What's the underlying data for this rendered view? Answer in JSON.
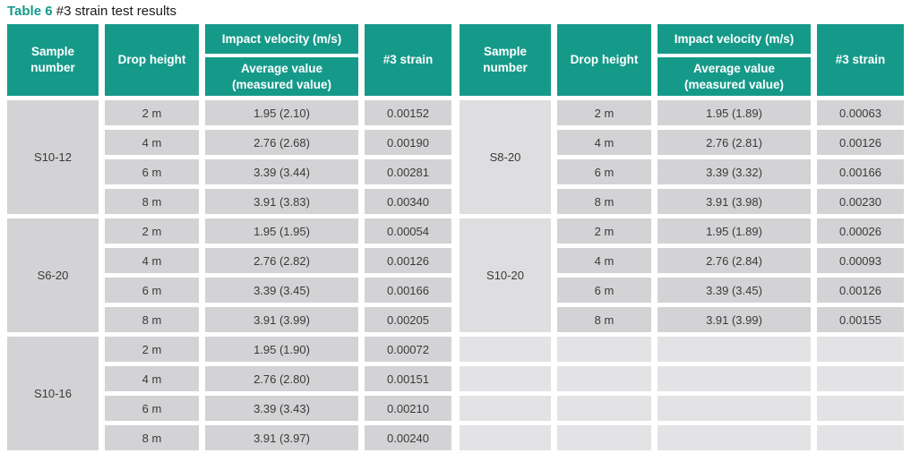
{
  "caption": {
    "label": "Table 6",
    "text": "#3 strain test results"
  },
  "colors": {
    "teal": "#159a8a",
    "cell_gray": "#d3d3d5",
    "cell_light": "#dedee0",
    "empty_gray": "#e3e3e5",
    "cell_text": "#3a3a3a",
    "caption_text": "#1a1a1a"
  },
  "header": {
    "sample": "Sample number",
    "drop": "Drop height",
    "velocity_group": "Impact velocity (m/s)",
    "velocity_sub": "Average value\n(measured value)",
    "strain": "#3 strain"
  },
  "tables": [
    {
      "sample_cell_light": false,
      "empty_rows": 0,
      "groups": [
        {
          "sample": "S10-12",
          "rows": [
            {
              "drop": "2 m",
              "velocity": "1.95 (2.10)",
              "strain": "0.00152"
            },
            {
              "drop": "4 m",
              "velocity": "2.76 (2.68)",
              "strain": "0.00190"
            },
            {
              "drop": "6 m",
              "velocity": "3.39 (3.44)",
              "strain": "0.00281"
            },
            {
              "drop": "8 m",
              "velocity": "3.91 (3.83)",
              "strain": "0.00340"
            }
          ]
        },
        {
          "sample": "S6-20",
          "rows": [
            {
              "drop": "2 m",
              "velocity": "1.95 (1.95)",
              "strain": "0.00054"
            },
            {
              "drop": "4 m",
              "velocity": "2.76 (2.82)",
              "strain": "0.00126"
            },
            {
              "drop": "6 m",
              "velocity": "3.39 (3.45)",
              "strain": "0.00166"
            },
            {
              "drop": "8 m",
              "velocity": "3.91 (3.99)",
              "strain": "0.00205"
            }
          ]
        },
        {
          "sample": "S10-16",
          "rows": [
            {
              "drop": "2 m",
              "velocity": "1.95 (1.90)",
              "strain": "0.00072"
            },
            {
              "drop": "4 m",
              "velocity": "2.76 (2.80)",
              "strain": "0.00151"
            },
            {
              "drop": "6 m",
              "velocity": "3.39 (3.43)",
              "strain": "0.00210"
            },
            {
              "drop": "8 m",
              "velocity": "3.91 (3.97)",
              "strain": "0.00240"
            }
          ]
        }
      ]
    },
    {
      "sample_cell_light": true,
      "empty_rows": 4,
      "groups": [
        {
          "sample": "S8-20",
          "rows": [
            {
              "drop": "2 m",
              "velocity": "1.95 (1.89)",
              "strain": "0.00063"
            },
            {
              "drop": "4 m",
              "velocity": "2.76 (2.81)",
              "strain": "0.00126"
            },
            {
              "drop": "6 m",
              "velocity": "3.39 (3.32)",
              "strain": "0.00166"
            },
            {
              "drop": "8 m",
              "velocity": "3.91 (3.98)",
              "strain": "0.00230"
            }
          ]
        },
        {
          "sample": "S10-20",
          "rows": [
            {
              "drop": "2 m",
              "velocity": "1.95 (1.89)",
              "strain": "0.00026"
            },
            {
              "drop": "4 m",
              "velocity": "2.76 (2.84)",
              "strain": "0.00093"
            },
            {
              "drop": "6 m",
              "velocity": "3.39 (3.45)",
              "strain": "0.00126"
            },
            {
              "drop": "8 m",
              "velocity": "3.91 (3.99)",
              "strain": "0.00155"
            }
          ]
        }
      ]
    }
  ]
}
